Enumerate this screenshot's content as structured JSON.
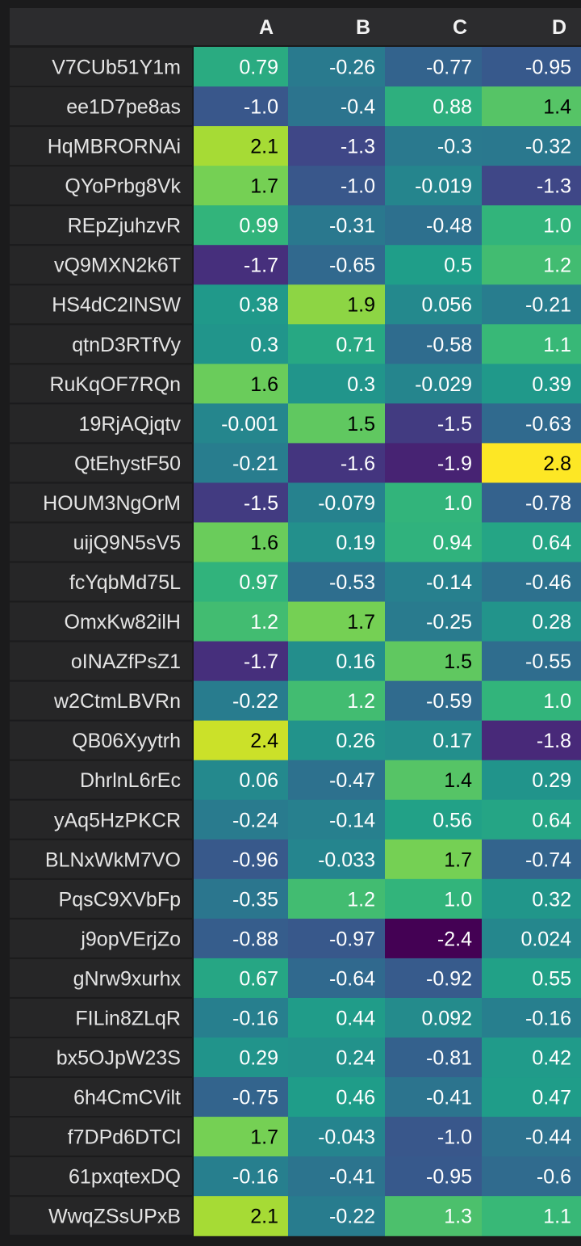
{
  "colors": {
    "background": "#1b1b1c",
    "header_band": "#2c2c2e",
    "row_label_band": "#262627",
    "header_text": "#f2f2f2",
    "row_label_text": "#e4e4e4",
    "dark_cell_text": "#ffffff",
    "light_cell_text": "#000000"
  },
  "chart_data": {
    "type": "heatmap",
    "colormap": "viridis",
    "vmin": -2.4,
    "vmax": 2.8,
    "columns": [
      "A",
      "B",
      "C",
      "D"
    ],
    "rows": [
      "V7CUb51Y1m",
      "ee1D7pe8as",
      "HqMBRORNAi",
      "QYoPrbg8Vk",
      "REpZjuhzvR",
      "vQ9MXN2k6T",
      "HS4dC2INSW",
      "qtnD3RTfVy",
      "RuKqOF7RQn",
      "19RjAQjqtv",
      "QtEhystF50",
      "HOUM3NgOrM",
      "uijQ9N5sV5",
      "fcYqbMd75L",
      "OmxKw82ilH",
      "oINAZfPsZ1",
      "w2CtmLBVRn",
      "QB06Xyytrh",
      "DhrlnL6rEc",
      "yAq5HzPKCR",
      "BLNxWkM7VO",
      "PqsC9XVbFp",
      "j9opVErjZo",
      "gNrw9xurhx",
      "FILin8ZLqR",
      "bx5OJpW23S",
      "6h4CmCVilt",
      "f7DPd6DTCl",
      "61pxqtexDQ",
      "WwqZSsUPxB"
    ],
    "values": [
      [
        "0.79",
        "-0.26",
        "-0.77",
        "-0.95"
      ],
      [
        "-1.0",
        "-0.4",
        "0.88",
        "1.4"
      ],
      [
        "2.1",
        "-1.3",
        "-0.3",
        "-0.32"
      ],
      [
        "1.7",
        "-1.0",
        "-0.019",
        "-1.3"
      ],
      [
        "0.99",
        "-0.31",
        "-0.48",
        "1.0"
      ],
      [
        "-1.7",
        "-0.65",
        "0.5",
        "1.2"
      ],
      [
        "0.38",
        "1.9",
        "0.056",
        "-0.21"
      ],
      [
        "0.3",
        "0.71",
        "-0.58",
        "1.1"
      ],
      [
        "1.6",
        "0.3",
        "-0.029",
        "0.39"
      ],
      [
        "-0.001",
        "1.5",
        "-1.5",
        "-0.63"
      ],
      [
        "-0.21",
        "-1.6",
        "-1.9",
        "2.8"
      ],
      [
        "-1.5",
        "-0.079",
        "1.0",
        "-0.78"
      ],
      [
        "1.6",
        "0.19",
        "0.94",
        "0.64"
      ],
      [
        "0.97",
        "-0.53",
        "-0.14",
        "-0.46"
      ],
      [
        "1.2",
        "1.7",
        "-0.25",
        "0.28"
      ],
      [
        "-1.7",
        "0.16",
        "1.5",
        "-0.55"
      ],
      [
        "-0.22",
        "1.2",
        "-0.59",
        "1.0"
      ],
      [
        "2.4",
        "0.26",
        "0.17",
        "-1.8"
      ],
      [
        "0.06",
        "-0.47",
        "1.4",
        "0.29"
      ],
      [
        "-0.24",
        "-0.14",
        "0.56",
        "0.64"
      ],
      [
        "-0.96",
        "-0.033",
        "1.7",
        "-0.74"
      ],
      [
        "-0.35",
        "1.2",
        "1.0",
        "0.32"
      ],
      [
        "-0.88",
        "-0.97",
        "-2.4",
        "0.024"
      ],
      [
        "0.67",
        "-0.64",
        "-0.92",
        "0.55"
      ],
      [
        "-0.16",
        "0.44",
        "0.092",
        "-0.16"
      ],
      [
        "0.29",
        "0.24",
        "-0.81",
        "0.42"
      ],
      [
        "-0.75",
        "0.46",
        "-0.41",
        "0.47"
      ],
      [
        "1.7",
        "-0.043",
        "-1.0",
        "-0.44"
      ],
      [
        "-0.16",
        "-0.41",
        "-0.95",
        "-0.6"
      ],
      [
        "2.1",
        "-0.22",
        "1.3",
        "1.1"
      ]
    ]
  }
}
